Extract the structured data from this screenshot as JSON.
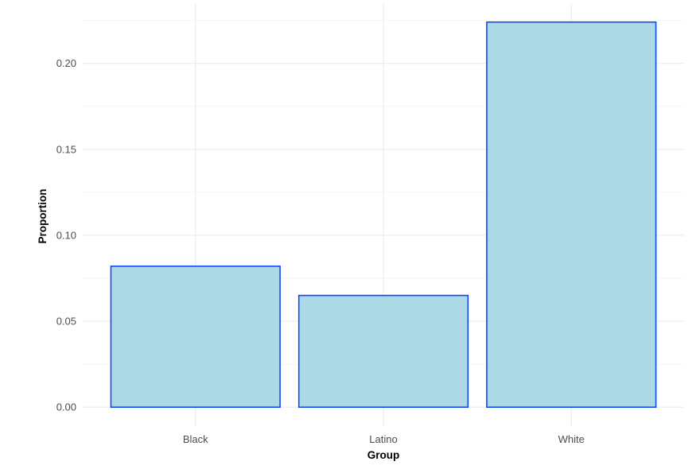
{
  "chart_data": {
    "type": "bar",
    "title": "",
    "xlabel": "Group",
    "ylabel": "Proportion",
    "categories": [
      "Black",
      "Latino",
      "White"
    ],
    "values": [
      0.082,
      0.065,
      0.224
    ],
    "ylim": [
      -0.011,
      0.235
    ],
    "yticks": [
      0.0,
      0.05,
      0.1,
      0.15,
      0.2
    ],
    "ytick_labels": [
      "0.00",
      "0.05",
      "0.10",
      "0.15",
      "0.20"
    ],
    "grid": true,
    "legend": "none",
    "colors": {
      "bar_fill": "#add8e6",
      "bar_stroke": "#0f4bf5",
      "grid_major": "#ebebeb",
      "grid_minor": "#f3f3f3",
      "tick_text": "#4d4d4d"
    }
  }
}
